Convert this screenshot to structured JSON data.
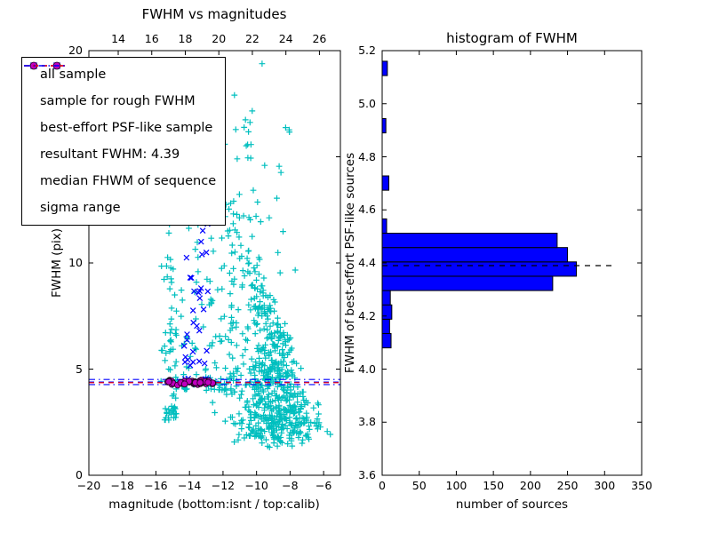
{
  "figure": {
    "background": "#ffffff"
  },
  "colors": {
    "cyan": "#00bfbf",
    "blue": "#0000ff",
    "magenta": "#bf00bf",
    "red": "#ff0000",
    "bar_fill": "#0000ff",
    "frame": "#000000"
  },
  "left_plot": {
    "title": "FWHM vs magnitudes",
    "xlabel": "magnitude (bottom:isnt / top:calib)",
    "ylabel": "FWHM (pix)",
    "legend": {
      "items": [
        {
          "label": "all sample",
          "marker": "plus",
          "color": "#00bfbf",
          "icon": "plus-markers-icon"
        },
        {
          "label": "sample for rough FWHM",
          "marker": "x",
          "color": "#0000ff",
          "icon": "x-markers-icon"
        },
        {
          "label": "best-effort PSF-like sample",
          "marker": "circle",
          "color": "#bf00bf",
          "icon": "circle-markers-icon"
        },
        {
          "label": "resultant FWHM: 4.39",
          "marker": "dashed",
          "color": "#0000ff",
          "icon": "dashed-line-icon"
        },
        {
          "label": "median FHWM of sequence",
          "marker": "dashed",
          "color": "#ff0000",
          "icon": "dashed-line-icon"
        },
        {
          "label": "sigma range",
          "marker": "dashdot",
          "color": "#0000ff",
          "icon": "dashdot-line-icon"
        }
      ]
    }
  },
  "right_plot": {
    "title": "histogram of FWHM",
    "xlabel": "number of sources",
    "ylabel": "FWHM of best-effort PSF-like sources"
  },
  "chart_data": [
    {
      "type": "scatter",
      "title": "FWHM vs magnitudes",
      "xlabel": "magnitude (bottom:isnt / top:calib)",
      "ylabel": "FWHM (pix)",
      "x_range": [
        -20,
        -5
      ],
      "top_x_range": [
        12.25,
        27.25
      ],
      "y_range": [
        0,
        20
      ],
      "x_ticks": [
        -20,
        -18,
        -16,
        -14,
        -12,
        -10,
        -8,
        -6
      ],
      "x_tick_labels": [
        "−20",
        "−18",
        "−16",
        "−14",
        "−12",
        "−10",
        "−8",
        "−6"
      ],
      "top_ticks": [
        14,
        16,
        18,
        20,
        22,
        24,
        26
      ],
      "top_tick_labels": [
        "14",
        "16",
        "18",
        "20",
        "22",
        "24",
        "26"
      ],
      "y_ticks": [
        0,
        5,
        10,
        15,
        20
      ],
      "y_tick_labels": [
        "0",
        "5",
        "10",
        "15",
        "20"
      ],
      "seed": 11,
      "series": [
        {
          "name": "all sample",
          "marker": "plus",
          "color": "#00bfbf",
          "clusters": [
            {
              "n": 95,
              "x": {
                "dist": "gauss",
                "mu": -15.05,
                "sigma": 0.28
              },
              "y": {
                "dist": "powlow",
                "min": 2.6,
                "max": 19.5,
                "exp": 1.7
              }
            },
            {
              "n": 620,
              "x": {
                "dist": "gauss",
                "mu": -9.2,
                "sigma": 1.15,
                "min": -12.9,
                "max": -5.6
              },
              "y": {
                "dist": "wedge",
                "base": 2.0,
                "slope": 1.9,
                "x0": -5.8,
                "exp": 1.55,
                "noise": 0.35
              }
            },
            {
              "n": 110,
              "x": {
                "dist": "uniform",
                "min": -14.5,
                "max": -11.2
              },
              "y": {
                "dist": "powlow",
                "min": 4.0,
                "max": 13.0,
                "exp": 2.2
              }
            },
            {
              "n": 45,
              "x": {
                "dist": "gauss",
                "mu": -10.3,
                "sigma": 1.2
              },
              "y": {
                "dist": "uniform",
                "min": 8.0,
                "max": 16.5
              }
            },
            {
              "n": 10,
              "x": {
                "dist": "uniform",
                "min": -15.6,
                "max": -9.5
              },
              "y": {
                "dist": "uniform",
                "min": 15.5,
                "max": 19.8
              }
            },
            {
              "n": 10,
              "x": {
                "dist": "uniform",
                "min": -8.2,
                "max": -6.3
              },
              "y": {
                "dist": "uniform",
                "min": 1.7,
                "max": 3.6
              }
            }
          ]
        },
        {
          "name": "sample for rough FWHM",
          "marker": "x",
          "color": "#0000ff",
          "clusters": [
            {
              "n": 42,
              "x": {
                "dist": "uniform",
                "min": -14.35,
                "max": -12.85
              },
              "y": {
                "dist": "powlow",
                "min": 4.35,
                "max": 12.2,
                "exp": 2.3
              }
            }
          ]
        },
        {
          "name": "best-effort PSF-like sample",
          "marker": "circle",
          "color": "#bf00bf",
          "edge": "#1a001a",
          "clusters": [
            {
              "n": 48,
              "x": {
                "dist": "uniform",
                "min": -15.3,
                "max": -12.55
              },
              "y": {
                "dist": "gauss",
                "mu": 4.37,
                "sigma": 0.055
              }
            }
          ]
        }
      ],
      "hlines": [
        {
          "name": "resultant FWHM",
          "value": 4.39,
          "color": "#0000ff",
          "style": "dashed"
        },
        {
          "name": "median FHWM of sequence",
          "value": 4.36,
          "color": "#ff0000",
          "style": "dashed"
        },
        {
          "name": "sigma range upper",
          "value": 4.51,
          "color": "#0000ff",
          "style": "dashdot"
        },
        {
          "name": "sigma range lower",
          "value": 4.27,
          "color": "#0000ff",
          "style": "dashdot"
        }
      ]
    },
    {
      "type": "bar",
      "orientation": "horizontal",
      "title": "histogram of FWHM",
      "xlabel": "number of sources",
      "ylabel": "FWHM of best-effort PSF-like sources",
      "x_range": [
        0,
        350
      ],
      "y_range": [
        3.6,
        5.2
      ],
      "x_ticks": [
        0,
        50,
        100,
        150,
        200,
        250,
        300,
        350
      ],
      "x_tick_labels": [
        "0",
        "50",
        "100",
        "150",
        "200",
        "250",
        "300",
        "350"
      ],
      "y_ticks": [
        3.6,
        3.8,
        4.0,
        4.2,
        4.4,
        4.6,
        4.8,
        5.0,
        5.2
      ],
      "y_tick_labels": [
        "3.6",
        "3.8",
        "4.0",
        "4.2",
        "4.4",
        "4.6",
        "4.8",
        "5.0",
        "5.2"
      ],
      "bar_color": "#0000ff",
      "bins": [
        {
          "from": 4.08,
          "to": 4.134,
          "count": 12
        },
        {
          "from": 4.134,
          "to": 4.188,
          "count": 10
        },
        {
          "from": 4.188,
          "to": 4.242,
          "count": 13
        },
        {
          "from": 4.242,
          "to": 4.296,
          "count": 11
        },
        {
          "from": 4.296,
          "to": 4.35,
          "count": 230
        },
        {
          "from": 4.35,
          "to": 4.404,
          "count": 262
        },
        {
          "from": 4.404,
          "to": 4.458,
          "count": 250
        },
        {
          "from": 4.458,
          "to": 4.512,
          "count": 236
        },
        {
          "from": 4.512,
          "to": 4.566,
          "count": 6
        },
        {
          "from": 4.674,
          "to": 4.728,
          "count": 9
        },
        {
          "from": 4.89,
          "to": 4.944,
          "count": 5
        },
        {
          "from": 5.106,
          "to": 5.16,
          "count": 7
        }
      ],
      "dashed_line": {
        "value": 4.39,
        "to_count": 313,
        "color": "#000000"
      }
    }
  ]
}
